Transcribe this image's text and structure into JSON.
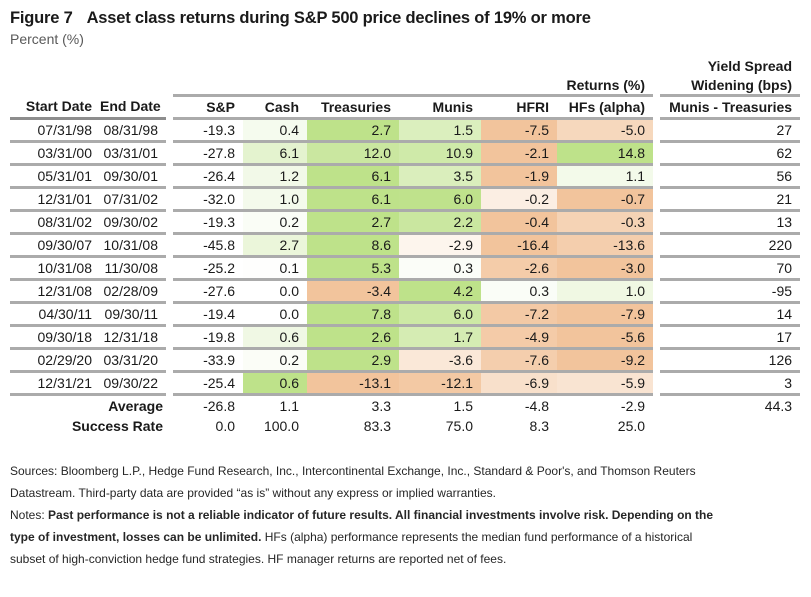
{
  "title": {
    "figure_label": "Figure 7",
    "text": "Asset class returns during S&P 500 price declines of 19% or more",
    "subtitle": "Percent (%)"
  },
  "colors": {
    "full_green": "#bee28a",
    "full_orange": "#f2c49c",
    "rule_gray": "#ababab",
    "rule_dark_gray": "#8d8d8d",
    "subtitle_gray": "#595959"
  },
  "chart_data": {
    "type": "table",
    "title": "Figure 7  Asset class returns during S&P 500 price declines of 19% or more",
    "units": "Percent (%)",
    "group_headers": {
      "returns": "Returns (%)",
      "yield_spread_line1": "Yield Spread",
      "yield_spread_line2": "Widening (bps)"
    },
    "columns": [
      "Start Date",
      "End Date",
      "S&P",
      "Cash",
      "Treasuries",
      "Munis",
      "HFRI",
      "HFs (alpha)",
      "Munis - Treasuries"
    ],
    "rows": [
      [
        "07/31/98",
        "08/31/98",
        "-19.3",
        "0.4",
        "2.7",
        "1.5",
        "-7.5",
        "-5.0",
        "27"
      ],
      [
        "03/31/00",
        "03/31/01",
        "-27.8",
        "6.1",
        "12.0",
        "10.9",
        "-2.1",
        "14.8",
        "62"
      ],
      [
        "05/31/01",
        "09/30/01",
        "-26.4",
        "1.2",
        "6.1",
        "3.5",
        "-1.9",
        "1.1",
        "56"
      ],
      [
        "12/31/01",
        "07/31/02",
        "-32.0",
        "1.0",
        "6.1",
        "6.0",
        "-0.2",
        "-0.7",
        "21"
      ],
      [
        "08/31/02",
        "09/30/02",
        "-19.3",
        "0.2",
        "2.7",
        "2.2",
        "-0.4",
        "-0.3",
        "13"
      ],
      [
        "09/30/07",
        "10/31/08",
        "-45.8",
        "2.7",
        "8.6",
        "-2.9",
        "-16.4",
        "-13.6",
        "220"
      ],
      [
        "10/31/08",
        "11/30/08",
        "-25.2",
        "0.1",
        "5.3",
        "0.3",
        "-2.6",
        "-3.0",
        "70"
      ],
      [
        "12/31/08",
        "02/28/09",
        "-27.6",
        "0.0",
        "-3.4",
        "4.2",
        "0.3",
        "1.0",
        "-95"
      ],
      [
        "04/30/11",
        "09/30/11",
        "-19.4",
        "0.0",
        "7.8",
        "6.0",
        "-7.2",
        "-7.9",
        "14"
      ],
      [
        "09/30/18",
        "12/31/18",
        "-19.8",
        "0.6",
        "2.6",
        "1.7",
        "-4.9",
        "-5.6",
        "17"
      ],
      [
        "02/29/20",
        "03/31/20",
        "-33.9",
        "0.2",
        "2.9",
        "-3.6",
        "-7.6",
        "-9.2",
        "126"
      ],
      [
        "12/31/21",
        "09/30/22",
        "-25.4",
        "0.6",
        "-13.1",
        "-12.1",
        "-6.9",
        "-5.9",
        "3"
      ]
    ],
    "summary": [
      {
        "label": "Average",
        "values": [
          "-26.8",
          "1.1",
          "3.3",
          "1.5",
          "-4.8",
          "-2.9"
        ],
        "spread": "44.3"
      },
      {
        "label": "Success Rate",
        "values": [
          "0.0",
          "100.0",
          "83.3",
          "75.0",
          "8.3",
          "25.0"
        ],
        "spread": ""
      }
    ],
    "heatmap_note": "cells Cash through HFs (alpha) shaded per row: white at 0, full green at row max, full orange at row min"
  },
  "footer": {
    "sources_line1": "Sources: Bloomberg L.P., Hedge Fund Research, Inc., Intercontinental Exchange, Inc., Standard & Poor's, and Thomson Reuters",
    "sources_line2": "Datastream. Third-party data are provided “as is” without any express or implied warranties.",
    "notes_prefix": "Notes: ",
    "notes_bold_line1": "Past performance is not a reliable indicator of future results. All financial investments involve risk. Depending on the",
    "notes_bold_line2": "type of investment, losses can be unlimited.",
    "notes_regular_line2": " HFs (alpha) performance represents the median fund performance of a historical",
    "notes_regular_line3": "subset of high-conviction hedge fund strategies. HF manager returns are reported net of fees."
  }
}
